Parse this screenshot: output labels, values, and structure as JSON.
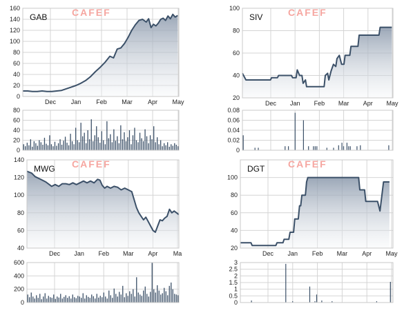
{
  "watermark": "CAFEF",
  "chart_data": [
    {
      "type": "area",
      "ticker": "GAB",
      "ylim": [
        0,
        160
      ],
      "yticks": [
        "0",
        "20",
        "40",
        "60",
        "80",
        "100",
        "120",
        "140",
        "160"
      ],
      "xticks": [
        "Dec",
        "Jan",
        "Feb",
        "Mar",
        "Apr",
        "May"
      ],
      "series": [
        {
          "x": 0,
          "y": 10
        },
        {
          "x": 0.2,
          "y": 10
        },
        {
          "x": 0.4,
          "y": 9
        },
        {
          "x": 0.6,
          "y": 9
        },
        {
          "x": 0.8,
          "y": 10
        },
        {
          "x": 1.0,
          "y": 9
        },
        {
          "x": 1.2,
          "y": 9
        },
        {
          "x": 1.4,
          "y": 10
        },
        {
          "x": 1.6,
          "y": 11
        },
        {
          "x": 1.8,
          "y": 14
        },
        {
          "x": 2.0,
          "y": 17
        },
        {
          "x": 2.2,
          "y": 20
        },
        {
          "x": 2.4,
          "y": 24
        },
        {
          "x": 2.6,
          "y": 29
        },
        {
          "x": 2.8,
          "y": 36
        },
        {
          "x": 3.0,
          "y": 45
        },
        {
          "x": 3.2,
          "y": 53
        },
        {
          "x": 3.4,
          "y": 62
        },
        {
          "x": 3.6,
          "y": 73
        },
        {
          "x": 3.75,
          "y": 70
        },
        {
          "x": 3.9,
          "y": 86
        },
        {
          "x": 4.05,
          "y": 88
        },
        {
          "x": 4.2,
          "y": 96
        },
        {
          "x": 4.35,
          "y": 107
        },
        {
          "x": 4.5,
          "y": 120
        },
        {
          "x": 4.65,
          "y": 130
        },
        {
          "x": 4.8,
          "y": 138
        },
        {
          "x": 4.95,
          "y": 140
        },
        {
          "x": 5.1,
          "y": 135
        },
        {
          "x": 5.2,
          "y": 141
        },
        {
          "x": 5.3,
          "y": 125
        },
        {
          "x": 5.4,
          "y": 131
        },
        {
          "x": 5.5,
          "y": 128
        },
        {
          "x": 5.6,
          "y": 133
        },
        {
          "x": 5.7,
          "y": 140
        },
        {
          "x": 5.8,
          "y": 142
        },
        {
          "x": 5.9,
          "y": 138
        },
        {
          "x": 6.0,
          "y": 146
        },
        {
          "x": 6.1,
          "y": 141
        },
        {
          "x": 6.2,
          "y": 149
        },
        {
          "x": 6.3,
          "y": 144
        },
        {
          "x": 6.4,
          "y": 147
        }
      ],
      "volume": {
        "ylim": [
          0,
          80
        ],
        "yticks": [
          "0",
          "20",
          "40",
          "60",
          "80"
        ],
        "values": [
          12,
          8,
          15,
          10,
          22,
          7,
          18,
          14,
          9,
          20,
          16,
          11,
          25,
          13,
          10,
          30,
          12,
          8,
          17,
          9,
          14,
          22,
          11,
          19,
          27,
          15,
          10,
          33,
          18,
          12,
          45,
          20,
          16,
          55,
          28,
          35,
          14,
          40,
          22,
          62,
          18,
          30,
          48,
          26,
          15,
          38,
          20,
          12,
          58,
          24,
          32,
          16,
          42,
          19,
          28,
          14,
          50,
          22,
          36,
          18,
          26,
          40,
          12,
          30,
          45,
          20,
          16,
          35,
          24,
          18,
          42,
          28,
          14,
          30,
          22,
          48,
          16,
          26,
          12,
          20,
          8,
          14,
          10,
          16,
          7,
          12,
          9,
          14,
          11,
          8
        ]
      }
    },
    {
      "type": "area",
      "ticker": "SIV",
      "ylim": [
        20,
        100
      ],
      "yticks": [
        "20",
        "40",
        "60",
        "80",
        "100"
      ],
      "xticks": [
        "Dec",
        "Jan",
        "Feb",
        "Mar",
        "Apr",
        "May"
      ],
      "series": [
        {
          "x": 0,
          "y": 42
        },
        {
          "x": 0.15,
          "y": 36
        },
        {
          "x": 1.2,
          "y": 36
        },
        {
          "x": 1.25,
          "y": 38
        },
        {
          "x": 1.5,
          "y": 38
        },
        {
          "x": 1.55,
          "y": 40
        },
        {
          "x": 2.1,
          "y": 40
        },
        {
          "x": 2.15,
          "y": 38
        },
        {
          "x": 2.3,
          "y": 38
        },
        {
          "x": 2.35,
          "y": 45
        },
        {
          "x": 2.45,
          "y": 40
        },
        {
          "x": 2.55,
          "y": 40
        },
        {
          "x": 2.6,
          "y": 33
        },
        {
          "x": 2.7,
          "y": 36
        },
        {
          "x": 2.75,
          "y": 30
        },
        {
          "x": 3.5,
          "y": 30
        },
        {
          "x": 3.55,
          "y": 40
        },
        {
          "x": 3.65,
          "y": 42
        },
        {
          "x": 3.7,
          "y": 36
        },
        {
          "x": 3.8,
          "y": 44
        },
        {
          "x": 3.9,
          "y": 50
        },
        {
          "x": 4.0,
          "y": 48
        },
        {
          "x": 4.05,
          "y": 55
        },
        {
          "x": 4.15,
          "y": 58
        },
        {
          "x": 4.25,
          "y": 50
        },
        {
          "x": 4.35,
          "y": 50
        },
        {
          "x": 4.4,
          "y": 58
        },
        {
          "x": 4.6,
          "y": 58
        },
        {
          "x": 4.65,
          "y": 66
        },
        {
          "x": 4.95,
          "y": 66
        },
        {
          "x": 5.0,
          "y": 76
        },
        {
          "x": 5.85,
          "y": 76
        },
        {
          "x": 5.9,
          "y": 83
        },
        {
          "x": 6.4,
          "y": 83
        }
      ],
      "volume": {
        "ylim": [
          0,
          0.08
        ],
        "yticks": [
          "0",
          "0.02",
          "0.04",
          "0.06",
          "0.08"
        ],
        "values": [
          0.03,
          0,
          0,
          0,
          0,
          0,
          0,
          0.005,
          0,
          0.005,
          0,
          0,
          0,
          0,
          0,
          0,
          0,
          0,
          0,
          0,
          0,
          0,
          0,
          0,
          0,
          0.008,
          0,
          0.008,
          0,
          0,
          0,
          0.075,
          0,
          0,
          0,
          0,
          0.06,
          0,
          0,
          0.008,
          0,
          0,
          0.008,
          0.008,
          0.008,
          0,
          0,
          0,
          0,
          0,
          0.005,
          0,
          0,
          0,
          0.005,
          0,
          0,
          0.01,
          0,
          0.015,
          0.008,
          0,
          0.015,
          0.008,
          0.008,
          0,
          0,
          0,
          0.008,
          0,
          0.01,
          0,
          0,
          0,
          0,
          0,
          0,
          0,
          0,
          0,
          0,
          0,
          0,
          0,
          0,
          0,
          0,
          0.01,
          0,
          0
        ]
      }
    },
    {
      "type": "area",
      "ticker": "MWG",
      "ylim": [
        40,
        140
      ],
      "yticks": [
        "40",
        "60",
        "80",
        "100",
        "120",
        "140"
      ],
      "xticks": [
        "Dec",
        "Jan",
        "Feb",
        "Mar",
        "Apr",
        "Ma"
      ],
      "series": [
        {
          "x": 0,
          "y": 127
        },
        {
          "x": 0.2,
          "y": 125
        },
        {
          "x": 0.35,
          "y": 121
        },
        {
          "x": 0.5,
          "y": 119
        },
        {
          "x": 0.65,
          "y": 117
        },
        {
          "x": 0.8,
          "y": 115
        },
        {
          "x": 0.95,
          "y": 112
        },
        {
          "x": 1.05,
          "y": 110
        },
        {
          "x": 1.2,
          "y": 112
        },
        {
          "x": 1.35,
          "y": 110
        },
        {
          "x": 1.5,
          "y": 113
        },
        {
          "x": 1.65,
          "y": 113
        },
        {
          "x": 1.8,
          "y": 112
        },
        {
          "x": 1.95,
          "y": 114
        },
        {
          "x": 2.1,
          "y": 112
        },
        {
          "x": 2.25,
          "y": 114
        },
        {
          "x": 2.4,
          "y": 116
        },
        {
          "x": 2.55,
          "y": 114
        },
        {
          "x": 2.7,
          "y": 116
        },
        {
          "x": 2.85,
          "y": 114
        },
        {
          "x": 3.0,
          "y": 118
        },
        {
          "x": 3.1,
          "y": 117
        },
        {
          "x": 3.2,
          "y": 111
        },
        {
          "x": 3.3,
          "y": 108
        },
        {
          "x": 3.4,
          "y": 110
        },
        {
          "x": 3.55,
          "y": 108
        },
        {
          "x": 3.7,
          "y": 110
        },
        {
          "x": 3.85,
          "y": 109
        },
        {
          "x": 4.0,
          "y": 106
        },
        {
          "x": 4.15,
          "y": 108
        },
        {
          "x": 4.3,
          "y": 106
        },
        {
          "x": 4.45,
          "y": 104
        },
        {
          "x": 4.55,
          "y": 95
        },
        {
          "x": 4.65,
          "y": 86
        },
        {
          "x": 4.75,
          "y": 80
        },
        {
          "x": 4.85,
          "y": 76
        },
        {
          "x": 4.95,
          "y": 72
        },
        {
          "x": 5.05,
          "y": 75
        },
        {
          "x": 5.15,
          "y": 70
        },
        {
          "x": 5.25,
          "y": 65
        },
        {
          "x": 5.35,
          "y": 60
        },
        {
          "x": 5.45,
          "y": 58
        },
        {
          "x": 5.55,
          "y": 65
        },
        {
          "x": 5.65,
          "y": 72
        },
        {
          "x": 5.75,
          "y": 71
        },
        {
          "x": 5.85,
          "y": 74
        },
        {
          "x": 5.95,
          "y": 76
        },
        {
          "x": 6.05,
          "y": 84
        },
        {
          "x": 6.15,
          "y": 80
        },
        {
          "x": 6.25,
          "y": 82
        },
        {
          "x": 6.35,
          "y": 80
        },
        {
          "x": 6.45,
          "y": 78
        }
      ],
      "volume": {
        "ylim": [
          0,
          600
        ],
        "yticks": [
          "0",
          "200",
          "400",
          "600"
        ],
        "values": [
          120,
          80,
          150,
          90,
          60,
          110,
          70,
          130,
          50,
          90,
          140,
          60,
          100,
          80,
          70,
          120,
          55,
          90,
          75,
          130,
          60,
          85,
          110,
          70,
          95,
          60,
          120,
          80,
          65,
          100,
          90,
          70,
          140,
          60,
          110,
          85,
          70,
          120,
          95,
          60,
          130,
          75,
          100,
          80,
          150,
          90,
          60,
          180,
          110,
          70,
          210,
          130,
          90,
          160,
          120,
          250,
          80,
          140,
          100,
          170,
          130,
          200,
          90,
          380,
          150,
          120,
          100,
          180,
          240,
          130,
          90,
          160,
          600,
          200,
          150,
          260,
          180,
          120,
          140,
          220,
          170,
          110,
          250,
          300,
          200,
          130,
          120,
          110
        ]
      }
    },
    {
      "type": "area",
      "ticker": "DGT",
      "ylim": [
        20,
        120
      ],
      "yticks": [
        "20",
        "40",
        "60",
        "80",
        "100"
      ],
      "xticks": [
        "Dec",
        "Jan",
        "Feb",
        "Mar",
        "Apr",
        "May"
      ],
      "series": [
        {
          "x": 0,
          "y": 26
        },
        {
          "x": 0.45,
          "y": 26
        },
        {
          "x": 0.5,
          "y": 23
        },
        {
          "x": 1.5,
          "y": 23
        },
        {
          "x": 1.55,
          "y": 26
        },
        {
          "x": 1.8,
          "y": 26
        },
        {
          "x": 1.85,
          "y": 30
        },
        {
          "x": 2.05,
          "y": 30
        },
        {
          "x": 2.1,
          "y": 38
        },
        {
          "x": 2.25,
          "y": 38
        },
        {
          "x": 2.3,
          "y": 53
        },
        {
          "x": 2.45,
          "y": 53
        },
        {
          "x": 2.5,
          "y": 68
        },
        {
          "x": 2.55,
          "y": 68
        },
        {
          "x": 2.6,
          "y": 80
        },
        {
          "x": 2.75,
          "y": 80
        },
        {
          "x": 2.8,
          "y": 95
        },
        {
          "x": 2.85,
          "y": 100
        },
        {
          "x": 5.0,
          "y": 100
        },
        {
          "x": 5.05,
          "y": 86
        },
        {
          "x": 5.25,
          "y": 86
        },
        {
          "x": 5.3,
          "y": 73
        },
        {
          "x": 5.8,
          "y": 73
        },
        {
          "x": 5.9,
          "y": 62
        },
        {
          "x": 6.05,
          "y": 95
        },
        {
          "x": 6.3,
          "y": 95
        }
      ],
      "volume": {
        "ylim": [
          0,
          3
        ],
        "yticks": [
          "0",
          "0.5",
          "1",
          "1.5",
          "2",
          "2.5",
          "3"
        ],
        "values": [
          0,
          0,
          0,
          0,
          0,
          0,
          0.15,
          0,
          0,
          0,
          0,
          0,
          0,
          0,
          0,
          0,
          0,
          0,
          0,
          0,
          0,
          0,
          0,
          0,
          0,
          0,
          2.9,
          0,
          0,
          0,
          0.1,
          0,
          0,
          0,
          0,
          0,
          0,
          0,
          0,
          0,
          1.2,
          0,
          0,
          0.1,
          0.6,
          0,
          0,
          0.15,
          0,
          0,
          0,
          0,
          0,
          0.1,
          0,
          0,
          0,
          0,
          0,
          0,
          0,
          0,
          0,
          0,
          0,
          0,
          0,
          0,
          0,
          0,
          0,
          0,
          0,
          0,
          0,
          0,
          0,
          0,
          0,
          0.1,
          0,
          0,
          0,
          0,
          0,
          0,
          0,
          1.55,
          0
        ]
      }
    }
  ]
}
